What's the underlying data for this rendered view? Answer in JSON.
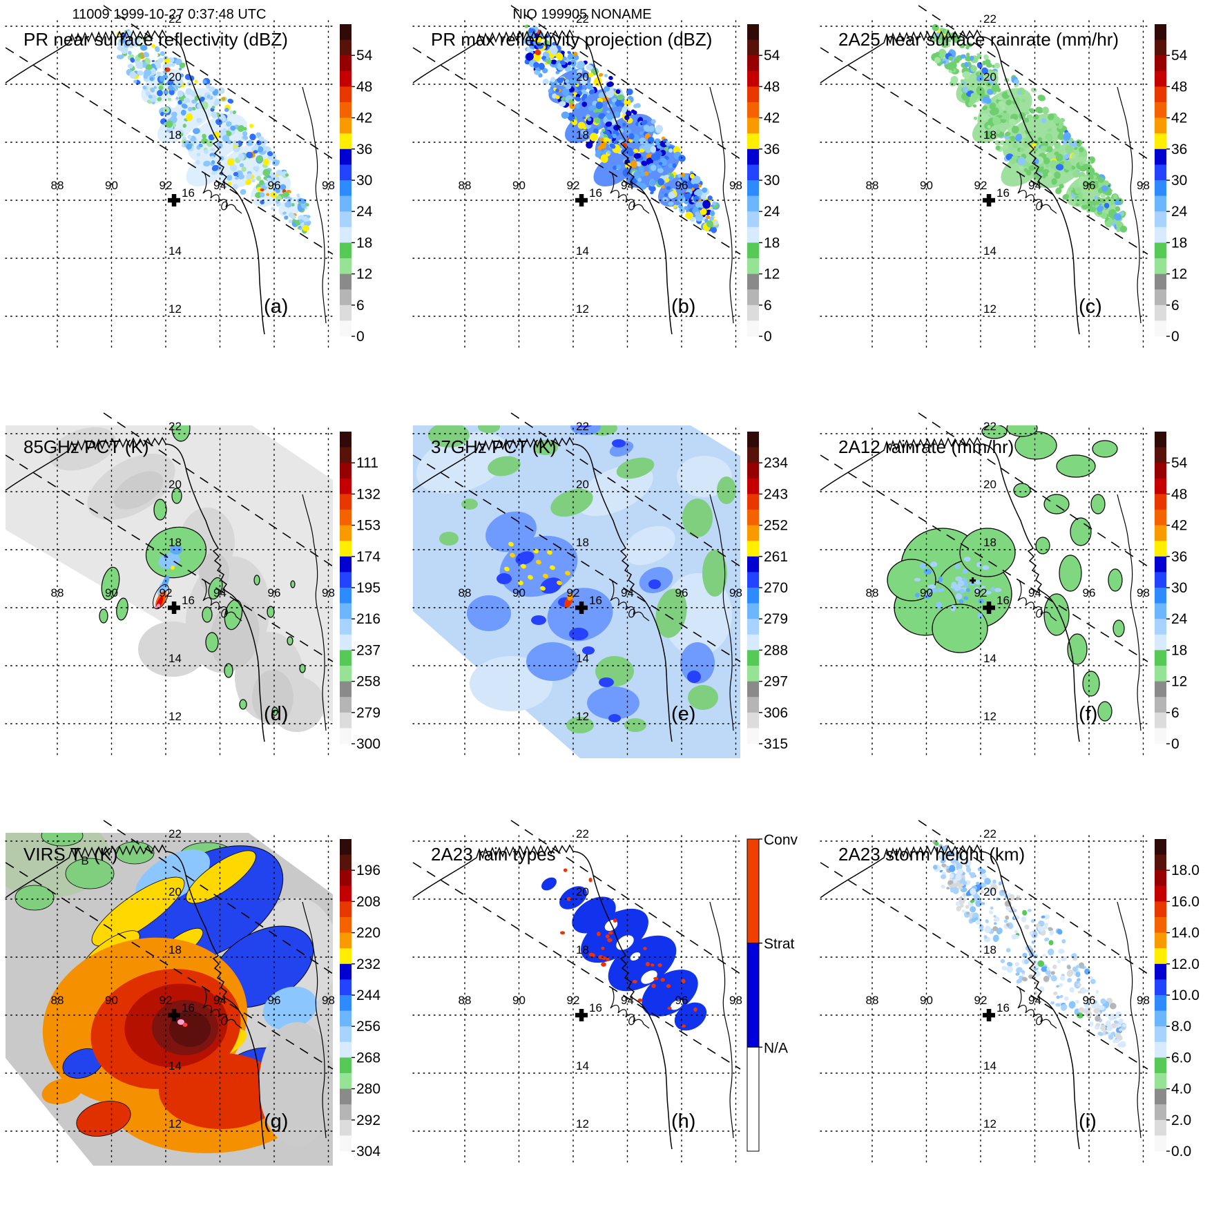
{
  "figure": {
    "header_left": "11009 1999-10-27 0:37:48 UTC",
    "header_center": "NIO 199905 NONAME"
  },
  "map": {
    "lon_labels": [
      "88",
      "90",
      "92",
      "94",
      "96",
      "98"
    ],
    "lat_labels": [
      "22",
      "20",
      "18",
      "16",
      "14",
      "12"
    ],
    "center_cross_lon": "92.3",
    "center_cross_lat": "16"
  },
  "colormap": [
    "#300a06",
    "#57120a",
    "#970000",
    "#c40000",
    "#e83800",
    "#f56300",
    "#f99b00",
    "#ffee00",
    "#0000d0",
    "#2244ff",
    "#2e8bff",
    "#6cb5ff",
    "#a8d2ff",
    "#d8eaff",
    "#57c957",
    "#96e396",
    "#8a8a8a",
    "#b5b5b5",
    "#dcdcdc",
    "#f8f8f8"
  ],
  "rain_type_colors": {
    "convective": "#f04000",
    "stratiform": "#0000dd",
    "not_available": "#ffffff"
  },
  "panels": [
    {
      "id": "a",
      "letter": "(a)",
      "title": "PR near surface reflectivity (dBZ)",
      "title_subscript": "",
      "title_suffix": "",
      "colorbar_type": "standard",
      "colorbar_ticks": [
        "54",
        "48",
        "42",
        "36",
        "30",
        "24",
        "18",
        "12",
        "6",
        "0"
      ]
    },
    {
      "id": "b",
      "letter": "(b)",
      "title": "PR max reflectivity projection (dBZ)",
      "title_subscript": "",
      "title_suffix": "",
      "colorbar_type": "standard",
      "colorbar_ticks": [
        "54",
        "48",
        "42",
        "36",
        "30",
        "24",
        "18",
        "12",
        "6",
        "0"
      ]
    },
    {
      "id": "c",
      "letter": "(c)",
      "title": "2A25 near surface rainrate (mm/hr)",
      "title_subscript": "",
      "title_suffix": "",
      "colorbar_type": "standard",
      "colorbar_ticks": [
        "54",
        "48",
        "42",
        "36",
        "30",
        "24",
        "18",
        "12",
        "6",
        "0"
      ]
    },
    {
      "id": "d",
      "letter": "(d)",
      "title": "85GHz PCT (K)",
      "title_subscript": "",
      "title_suffix": "",
      "colorbar_type": "standard",
      "colorbar_ticks": [
        "111",
        "132",
        "153",
        "174",
        "195",
        "216",
        "237",
        "258",
        "279",
        "300"
      ]
    },
    {
      "id": "e",
      "letter": "(e)",
      "title": "37GHz PCT (K)",
      "title_subscript": "",
      "title_suffix": "",
      "colorbar_type": "standard",
      "colorbar_ticks": [
        "234",
        "243",
        "252",
        "261",
        "270",
        "279",
        "288",
        "297",
        "306",
        "315"
      ]
    },
    {
      "id": "f",
      "letter": "(f)",
      "title": "2A12 rainrate (mm/hr)",
      "title_subscript": "",
      "title_suffix": "",
      "colorbar_type": "standard",
      "colorbar_ticks": [
        "54",
        "48",
        "42",
        "36",
        "30",
        "24",
        "18",
        "12",
        "6",
        "0"
      ]
    },
    {
      "id": "g",
      "letter": "(g)",
      "title": "VIRS T",
      "title_subscript": "B",
      "title_suffix": " (K)",
      "colorbar_type": "standard",
      "colorbar_ticks": [
        "196",
        "208",
        "220",
        "232",
        "244",
        "256",
        "268",
        "280",
        "292",
        "304"
      ]
    },
    {
      "id": "h",
      "letter": "(h)",
      "title": "2A23 rain types",
      "title_subscript": "",
      "title_suffix": "",
      "colorbar_type": "categorical",
      "colorbar_ticks": [
        "Conv",
        "Strat",
        "N/A"
      ]
    },
    {
      "id": "i",
      "letter": "(i)",
      "title": "2A23 storm height (km)",
      "title_subscript": "",
      "title_suffix": "",
      "colorbar_type": "standard",
      "colorbar_ticks": [
        "18.0",
        "16.0",
        "14.0",
        "12.0",
        "10.0",
        "8.0",
        "6.0",
        "4.0",
        "2.0",
        "0.0"
      ]
    }
  ],
  "chart_data": {
    "type": "heatmap",
    "subtype": "satellite-swath-maps",
    "title": "TRMM overpass 11009, 1999-10-27 0:37:48 UTC, NIO 199905 NONAME",
    "lon_gridlines": [
      88,
      90,
      92,
      94,
      96,
      98
    ],
    "lat_gridlines": [
      12,
      14,
      16,
      18,
      20,
      22
    ],
    "storm_center_marker": {
      "lon": 92.3,
      "lat": 16.0
    },
    "panels": [
      {
        "letter": "(a)",
        "title": "PR near surface reflectivity (dBZ)",
        "scale_ticks": [
          54,
          48,
          42,
          36,
          30,
          24,
          18,
          12,
          6,
          0
        ]
      },
      {
        "letter": "(b)",
        "title": "PR max reflectivity projection (dBZ)",
        "scale_ticks": [
          54,
          48,
          42,
          36,
          30,
          24,
          18,
          12,
          6,
          0
        ]
      },
      {
        "letter": "(c)",
        "title": "2A25 near surface rainrate (mm/hr)",
        "scale_ticks": [
          54,
          48,
          42,
          36,
          30,
          24,
          18,
          12,
          6,
          0
        ]
      },
      {
        "letter": "(d)",
        "title": "85GHz PCT (K)",
        "scale_ticks": [
          111,
          132,
          153,
          174,
          195,
          216,
          237,
          258,
          279,
          300
        ]
      },
      {
        "letter": "(e)",
        "title": "37GHz PCT (K)",
        "scale_ticks": [
          234,
          243,
          252,
          261,
          270,
          279,
          288,
          297,
          306,
          315
        ]
      },
      {
        "letter": "(f)",
        "title": "2A12 rainrate (mm/hr)",
        "scale_ticks": [
          54,
          48,
          42,
          36,
          30,
          24,
          18,
          12,
          6,
          0
        ]
      },
      {
        "letter": "(g)",
        "title": "VIRS TB (K)",
        "scale_ticks": [
          196,
          208,
          220,
          232,
          244,
          256,
          268,
          280,
          292,
          304
        ]
      },
      {
        "letter": "(h)",
        "title": "2A23 rain types",
        "scale_ticks": [
          "Conv",
          "Strat",
          "N/A"
        ]
      },
      {
        "letter": "(i)",
        "title": "2A23 storm height (km)",
        "scale_ticks": [
          18.0,
          16.0,
          14.0,
          12.0,
          10.0,
          8.0,
          6.0,
          4.0,
          2.0,
          0.0
        ]
      }
    ]
  }
}
